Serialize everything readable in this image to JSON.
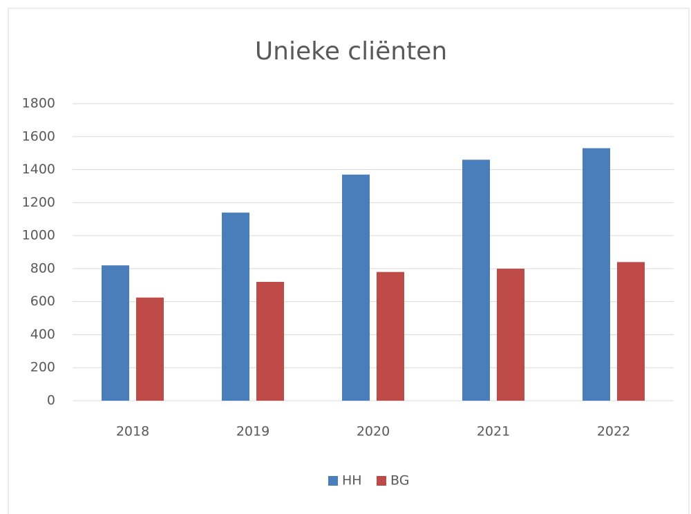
{
  "chart_data": {
    "type": "bar",
    "title": "Unieke cliënten",
    "categories": [
      "2018",
      "2019",
      "2020",
      "2021",
      "2022"
    ],
    "series": [
      {
        "name": "HH",
        "color": "#4a7ebb",
        "values": [
          820,
          1140,
          1370,
          1460,
          1530
        ]
      },
      {
        "name": "BG",
        "color": "#be4b48",
        "values": [
          625,
          720,
          780,
          800,
          840
        ]
      }
    ],
    "ylim": [
      0,
      1800
    ],
    "yticks": [
      0,
      200,
      400,
      600,
      800,
      1000,
      1200,
      1400,
      1600,
      1800
    ],
    "grid": true,
    "legend": "bottom"
  }
}
